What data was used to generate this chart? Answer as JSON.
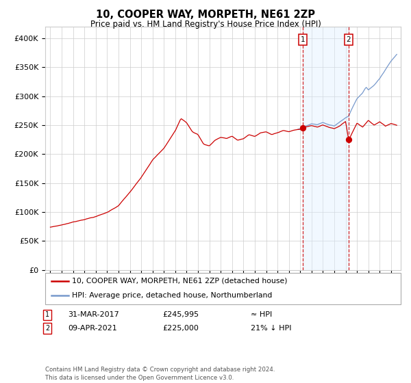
{
  "title": "10, COOPER WAY, MORPETH, NE61 2ZP",
  "subtitle": "Price paid vs. HM Land Registry's House Price Index (HPI)",
  "legend_line1": "10, COOPER WAY, MORPETH, NE61 2ZP (detached house)",
  "legend_line2": "HPI: Average price, detached house, Northumberland",
  "annotation1_date": "31-MAR-2017",
  "annotation1_price": "£245,995",
  "annotation1_hpi": "≈ HPI",
  "annotation2_date": "09-APR-2021",
  "annotation2_price": "£225,000",
  "annotation2_hpi": "21% ↓ HPI",
  "footnote": "Contains HM Land Registry data © Crown copyright and database right 2024.\nThis data is licensed under the Open Government Licence v3.0.",
  "hpi_color": "#7799cc",
  "price_color": "#cc0000",
  "marker_color": "#cc0000",
  "vline_color": "#cc0000",
  "shade_color": "#ddeeff",
  "background_color": "#ffffff",
  "grid_color": "#cccccc",
  "ylim": [
    0,
    420000
  ],
  "yticks": [
    0,
    50000,
    100000,
    150000,
    200000,
    250000,
    300000,
    350000,
    400000
  ],
  "sale1_year": 2017.24,
  "sale1_value": 245995,
  "sale2_year": 2021.27,
  "sale2_value": 225000,
  "xstart": 1995,
  "xend": 2025
}
